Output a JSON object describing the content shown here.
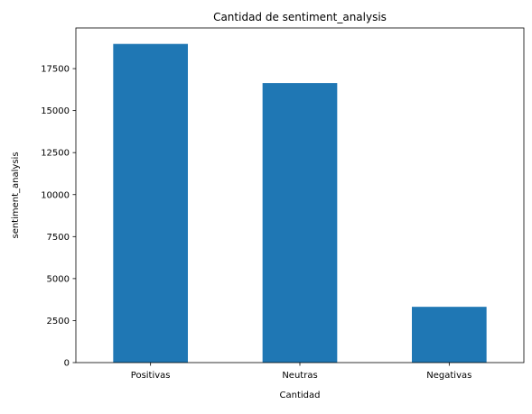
{
  "chart_data": {
    "type": "bar",
    "title": "Cantidad de sentiment_analysis",
    "xlabel": "Cantidad",
    "ylabel": "sentiment_analysis",
    "categories": [
      "Positivas",
      "Neutras",
      "Negativas"
    ],
    "values": [
      18970,
      16640,
      3320
    ],
    "ylim": [
      0,
      19920
    ],
    "yticks": [
      0,
      2500,
      5000,
      7500,
      10000,
      12500,
      15000,
      17500
    ],
    "bar_color": "#1f77b4",
    "grid": false,
    "legend": "none"
  }
}
